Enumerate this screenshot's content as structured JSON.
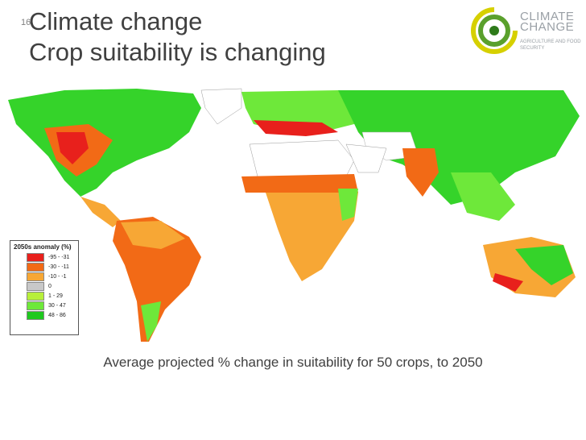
{
  "slide": {
    "number": "16",
    "title_line1": "Climate change",
    "title_line2": "Crop suitability is changing"
  },
  "logo": {
    "line1": "CLIMATE",
    "line2": "CHANGE",
    "sub": "AGRICULTURE AND FOOD SECURITY"
  },
  "legend": {
    "title": "2050s anomaly (%)",
    "items": [
      {
        "label": "-95 - -31",
        "color": "#e8201c"
      },
      {
        "label": "-30 - -11",
        "color": "#f26a16"
      },
      {
        "label": "-10 - -1",
        "color": "#f7a735"
      },
      {
        "label": "0",
        "color": "#c8c8c8"
      },
      {
        "label": "1 - 29",
        "color": "#b7ef3a"
      },
      {
        "label": "30 - 47",
        "color": "#6ee83a"
      },
      {
        "label": "48 - 86",
        "color": "#1fc81f"
      }
    ]
  },
  "caption": "Average projected % change in suitability for 50 crops, to 2050"
}
